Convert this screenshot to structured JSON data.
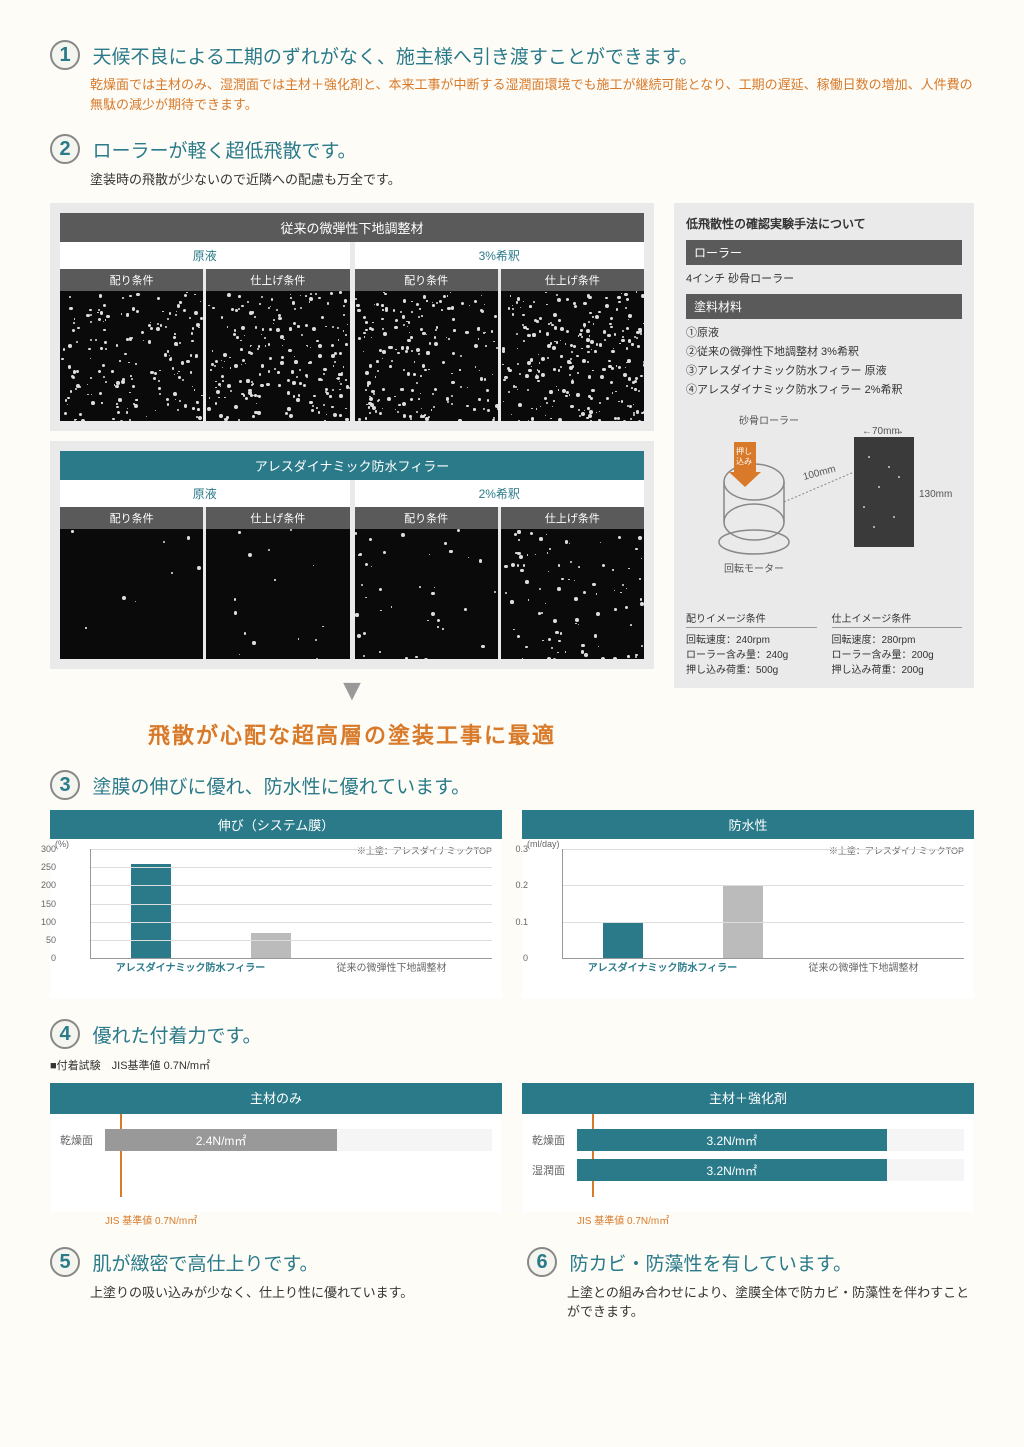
{
  "sections": {
    "s1": {
      "num": "1",
      "title": "天候不良による工期のずれがなく、施主様へ引き渡すことができます。",
      "sub": "乾燥面では主材のみ、湿潤面では主材＋強化剤と、本来工事が中断する湿潤面環境でも施工が継続可能となり、工期の遅延、稼働日数の増加、人件費の無駄の減少が期待できます。"
    },
    "s2": {
      "num": "2",
      "title": "ローラーが軽く超低飛散です。",
      "desc": "塗装時の飛散が少ないので近隣への配慮も万全です。"
    },
    "s3": {
      "num": "3",
      "title": "塗膜の伸びに優れ、防水性に優れています。"
    },
    "s4": {
      "num": "4",
      "title": "優れた付着力です。"
    },
    "s5": {
      "num": "5",
      "title": "肌が緻密で高仕上りです。",
      "desc": "上塗りの吸い込みが少なく、仕上り性に優れています。"
    },
    "s6": {
      "num": "6",
      "title": "防カビ・防藻性を有しています。",
      "desc": "上塗との組み合わせにより、塗膜全体で防カビ・防藻性を伴わすことができます。"
    }
  },
  "scatter_panels": {
    "top": {
      "header": "従来の微弾性下地調整材",
      "groups": [
        {
          "h": "原液",
          "cells": [
            "配り条件",
            "仕上げ条件"
          ]
        },
        {
          "h": "3%希釈",
          "cells": [
            "配り条件",
            "仕上げ条件"
          ]
        }
      ]
    },
    "bottom": {
      "header": "アレスダイナミック防水フィラー",
      "groups": [
        {
          "h": "原液",
          "cells": [
            "配り条件",
            "仕上げ条件"
          ]
        },
        {
          "h": "2%希釈",
          "cells": [
            "配り条件",
            "仕上げ条件"
          ]
        }
      ]
    }
  },
  "highlight": "飛散が心配な超高層の塗装工事に最適",
  "info": {
    "title": "低飛散性の確認実験手法について",
    "roller_h": "ローラー",
    "roller": "4インチ 砂骨ローラー",
    "material_h": "塗料材料",
    "materials": [
      "①原液",
      "②従来の微弾性下地調整材 3%希釈",
      "③アレスダイナミック防水フィラー 原液",
      "④アレスダイナミック防水フィラー 2%希釈"
    ],
    "diagram": {
      "roller_label": "砂骨ローラー",
      "motor_label": "回転モーター",
      "push_label": "押し込み荷重",
      "w": "70mm",
      "h": "130mm",
      "dist": "100mm"
    },
    "specs": {
      "left": {
        "h": "配りイメージ条件",
        "lines": [
          "回転速度：240rpm",
          "ローラー含み量：240g",
          "押し込み荷重：500g"
        ]
      },
      "right": {
        "h": "仕上イメージ条件",
        "lines": [
          "回転速度：280rpm",
          "ローラー含み量：200g",
          "押し込み荷重：200g"
        ]
      }
    }
  },
  "charts": {
    "chart1": {
      "title": "伸び（システム膜）",
      "unit": "(%)",
      "note": "※上塗：アレスダイナミックTOP",
      "y_ticks": [
        "300",
        "250",
        "200",
        "150",
        "100",
        "50",
        "0"
      ],
      "ymax": 300,
      "bars": [
        {
          "label": "アレスダイナミック防水フィラー",
          "value": 260,
          "color": "teal"
        },
        {
          "label": "従来の微弾性下地調整材",
          "value": 70,
          "color": "gray"
        }
      ]
    },
    "chart2": {
      "title": "防水性",
      "unit": "(ml/day)",
      "note": "※上塗：アレスダイナミックTOP",
      "y_ticks": [
        "0.3",
        "0.2",
        "0.1",
        "0"
      ],
      "ymax": 0.3,
      "bars": [
        {
          "label": "アレスダイナミック防水フィラー",
          "value": 0.1,
          "color": "teal"
        },
        {
          "label": "従来の微弾性下地調整材",
          "value": 0.2,
          "color": "gray"
        }
      ]
    }
  },
  "adhesion": {
    "test_note": "■付着試験　JIS基準値 0.7N/m㎡",
    "jis_label": "JIS 基準値 0.7N/m㎡",
    "left": {
      "title": "主材のみ",
      "max": 4,
      "bars": [
        {
          "label": "乾燥面",
          "value": 2.4,
          "text": "2.4N/m㎡"
        }
      ]
    },
    "right": {
      "title": "主材＋強化剤",
      "max": 4,
      "bars": [
        {
          "label": "乾燥面",
          "value": 3.2,
          "text": "3.2N/m㎡"
        },
        {
          "label": "湿潤面",
          "value": 3.2,
          "text": "3.2N/m㎡"
        }
      ]
    }
  },
  "colors": {
    "teal": "#2a7a8a",
    "orange": "#d87a2a",
    "gray": "#bbb",
    "dark_gray": "#5a5a5a"
  }
}
